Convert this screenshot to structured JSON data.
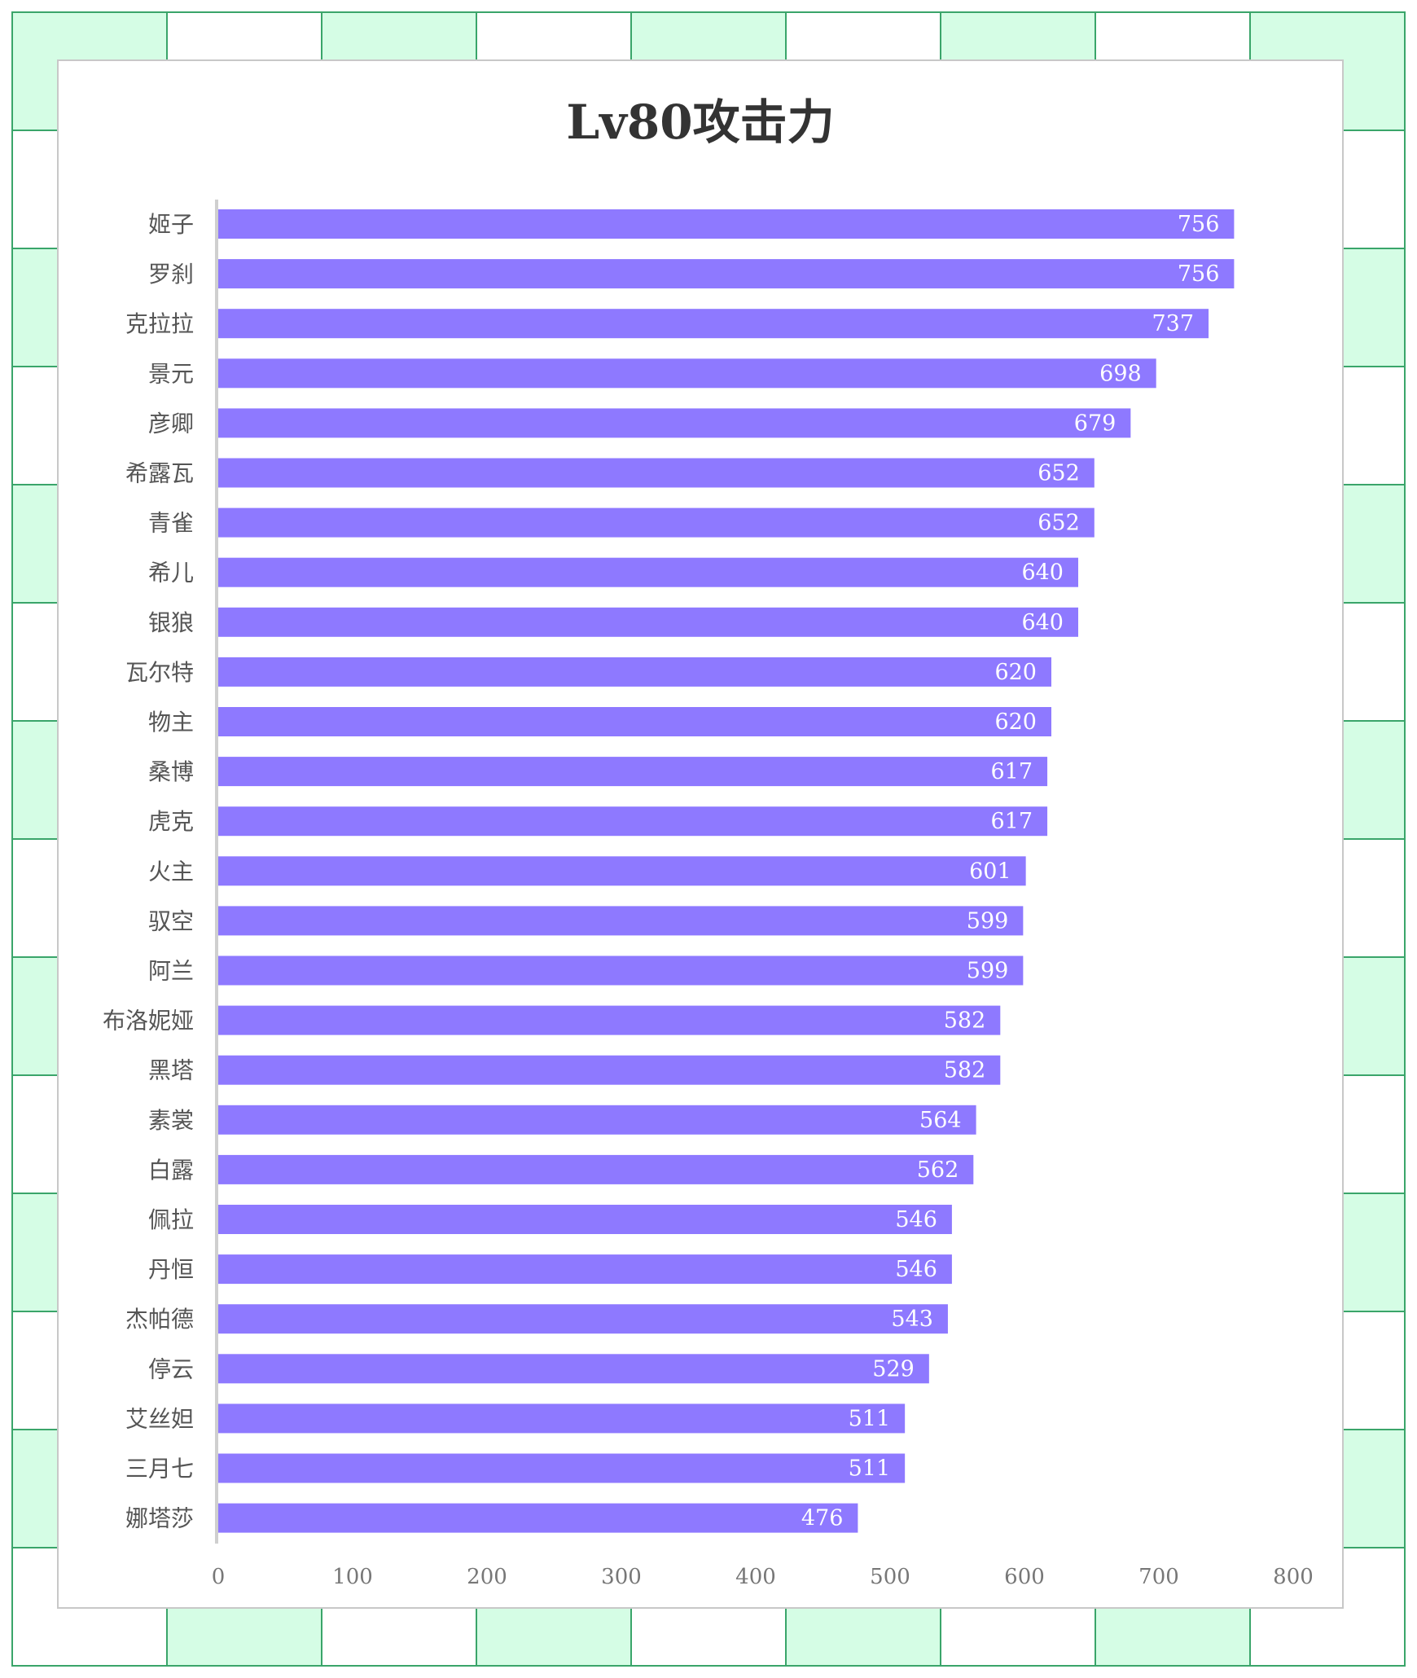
{
  "chart_data": {
    "type": "bar",
    "orientation": "horizontal",
    "title": "Lv80攻击力",
    "categories": [
      "姬子",
      "罗刹",
      "克拉拉",
      "景元",
      "彦卿",
      "希露瓦",
      "青雀",
      "希儿",
      "银狼",
      "瓦尔特",
      "物主",
      "桑博",
      "虎克",
      "火主",
      "驭空",
      "阿兰",
      "布洛妮娅",
      "黑塔",
      "素裳",
      "白露",
      "佩拉",
      "丹恒",
      "杰帕德",
      "停云",
      "艾丝妲",
      "三月七",
      "娜塔莎"
    ],
    "values": [
      756,
      756,
      737,
      698,
      679,
      652,
      652,
      640,
      640,
      620,
      620,
      617,
      617,
      601,
      599,
      599,
      582,
      582,
      564,
      562,
      546,
      546,
      543,
      529,
      511,
      511,
      476
    ],
    "xlim": [
      0,
      800
    ],
    "xticks": [
      0,
      100,
      200,
      300,
      400,
      500,
      600,
      700,
      800
    ],
    "xlabel": "",
    "ylabel": "",
    "grid": false,
    "legend": "none",
    "data_labels": true
  },
  "colors": {
    "bar": "#8e79ff",
    "background_grid": "#d5fde5",
    "grid_line": "#3aa56a",
    "axis": "#cfcfcf"
  }
}
